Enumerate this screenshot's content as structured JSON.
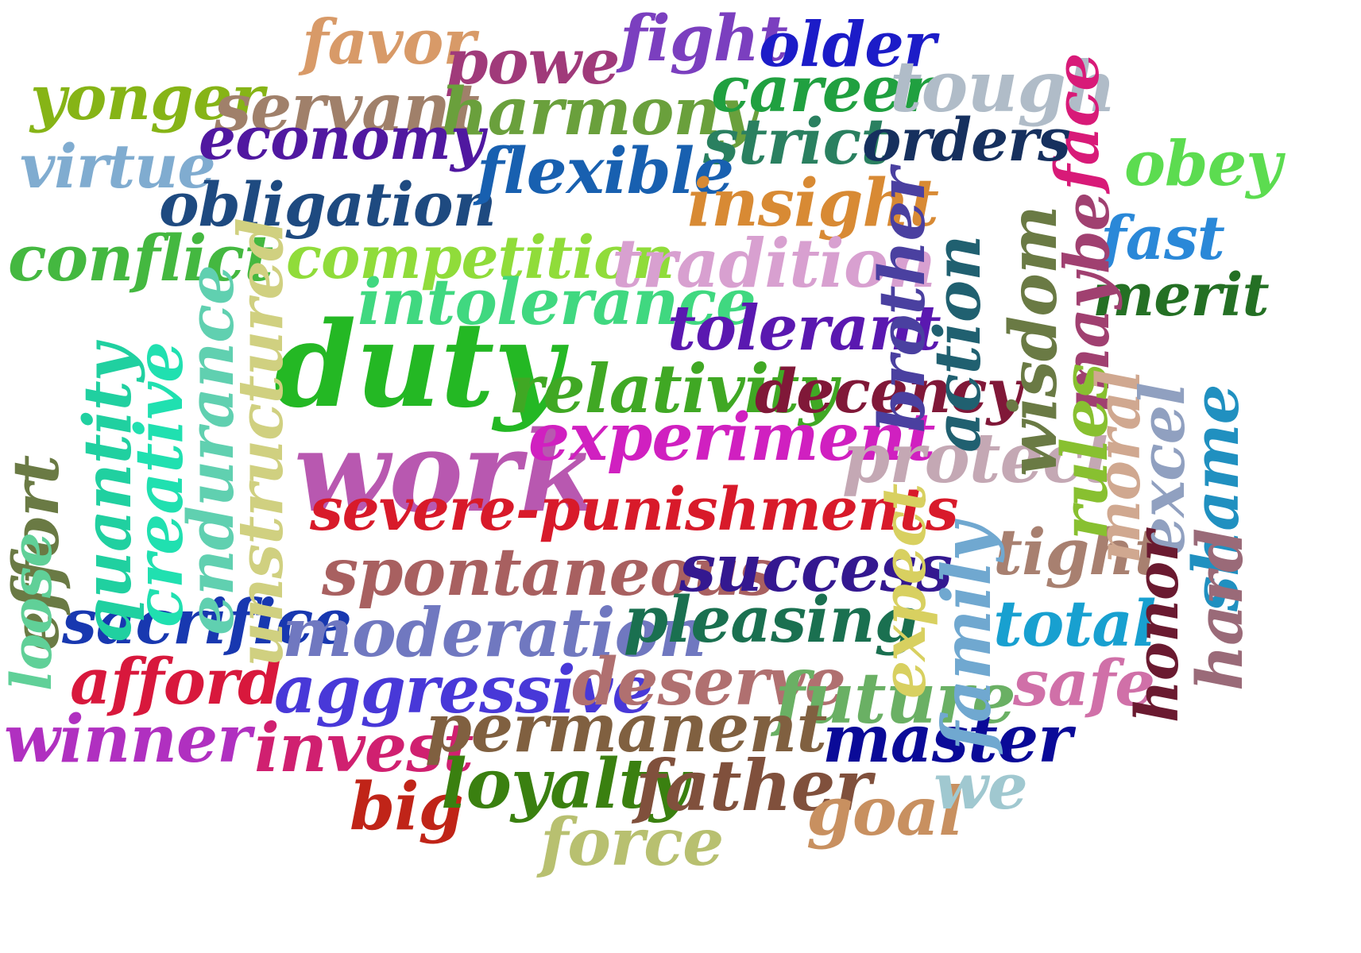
{
  "words": [
    {
      "text": "favor",
      "color": "#d89a68"
    },
    {
      "text": "powe",
      "color": "#a03a7a"
    },
    {
      "text": "fight",
      "color": "#7b3fbf"
    },
    {
      "text": "older",
      "color": "#1c1cc8"
    },
    {
      "text": "yonger",
      "color": "#86b416"
    },
    {
      "text": "servant",
      "color": "#a0806a"
    },
    {
      "text": "harmony",
      "color": "#6aa03c"
    },
    {
      "text": "career",
      "color": "#20a040"
    },
    {
      "text": "tough",
      "color": "#b0bcc8"
    },
    {
      "text": "face",
      "color": "#d81a78"
    },
    {
      "text": "virtue",
      "color": "#80acd0"
    },
    {
      "text": "economy",
      "color": "#5018a0"
    },
    {
      "text": "strict",
      "color": "#2a8060"
    },
    {
      "text": "orders",
      "color": "#16305e"
    },
    {
      "text": "obey",
      "color": "#5cdc50"
    },
    {
      "text": "obligation",
      "color": "#1e4a80"
    },
    {
      "text": "flexible",
      "color": "#1860b0"
    },
    {
      "text": "insight",
      "color": "#d88a34"
    },
    {
      "text": "conflict",
      "color": "#44b840"
    },
    {
      "text": "competition",
      "color": "#90dc3a"
    },
    {
      "text": "tradition",
      "color": "#d8a0d0"
    },
    {
      "text": "fast",
      "color": "#2a88d8"
    },
    {
      "text": "intolerance",
      "color": "#40d880"
    },
    {
      "text": "merit",
      "color": "#247024"
    },
    {
      "text": "tolerant",
      "color": "#5a18b0"
    },
    {
      "text": "duty",
      "color": "#24b824"
    },
    {
      "text": "relativity",
      "color": "#40a824"
    },
    {
      "text": "decency",
      "color": "#801838"
    },
    {
      "text": "work",
      "color": "#b858b0"
    },
    {
      "text": "experiment",
      "color": "#d020c0"
    },
    {
      "text": "protect",
      "color": "#c4a8b4"
    },
    {
      "text": "severe-punishments",
      "color": "#d81a2a"
    },
    {
      "text": "spontaneous",
      "color": "#a86060"
    },
    {
      "text": "success",
      "color": "#341890"
    },
    {
      "text": "tight",
      "color": "#a88070"
    },
    {
      "text": "sacrifice",
      "color": "#1838b0"
    },
    {
      "text": "moderation",
      "color": "#7078c0"
    },
    {
      "text": "pleasing",
      "color": "#1a7050"
    },
    {
      "text": "total",
      "color": "#18a0d0"
    },
    {
      "text": "afford",
      "color": "#d8183c"
    },
    {
      "text": "aggressive",
      "color": "#4838d8"
    },
    {
      "text": "deserve",
      "color": "#b07070"
    },
    {
      "text": "future",
      "color": "#6ab064"
    },
    {
      "text": "safe",
      "color": "#d070a8"
    },
    {
      "text": "winner",
      "color": "#b030c0"
    },
    {
      "text": "invest",
      "color": "#d02070"
    },
    {
      "text": "permanent",
      "color": "#806040"
    },
    {
      "text": "master",
      "color": "#0a0a98"
    },
    {
      "text": "big",
      "color": "#c02418"
    },
    {
      "text": "loyalty",
      "color": "#3a8010"
    },
    {
      "text": "father",
      "color": "#80503c"
    },
    {
      "text": "goal",
      "color": "#c89060"
    },
    {
      "text": "we",
      "color": "#a0c8d0"
    },
    {
      "text": "force",
      "color": "#b8c070"
    },
    {
      "text": "effort",
      "color": "#6a7a44"
    },
    {
      "text": "loose",
      "color": "#60d098"
    },
    {
      "text": "quantity",
      "color": "#20d0a0"
    },
    {
      "text": "creative",
      "color": "#20e0b0"
    },
    {
      "text": "endurance",
      "color": "#60d0b0"
    },
    {
      "text": "unstructured",
      "color": "#d0d080"
    },
    {
      "text": "brother",
      "color": "#4a40a0"
    },
    {
      "text": "action",
      "color": "#206070"
    },
    {
      "text": "wisdom",
      "color": "#6a7a44"
    },
    {
      "text": "maybe",
      "color": "#a04070"
    },
    {
      "text": "rules",
      "color": "#88c030"
    },
    {
      "text": "moral",
      "color": "#d0a890"
    },
    {
      "text": "excel",
      "color": "#90a0c0"
    },
    {
      "text": "shame",
      "color": "#2090c0"
    },
    {
      "text": "expect",
      "color": "#d8d060"
    },
    {
      "text": "family",
      "color": "#70a8d0"
    },
    {
      "text": "honor",
      "color": "#6a1a30"
    },
    {
      "text": "hard",
      "color": "#9a6a78"
    }
  ]
}
